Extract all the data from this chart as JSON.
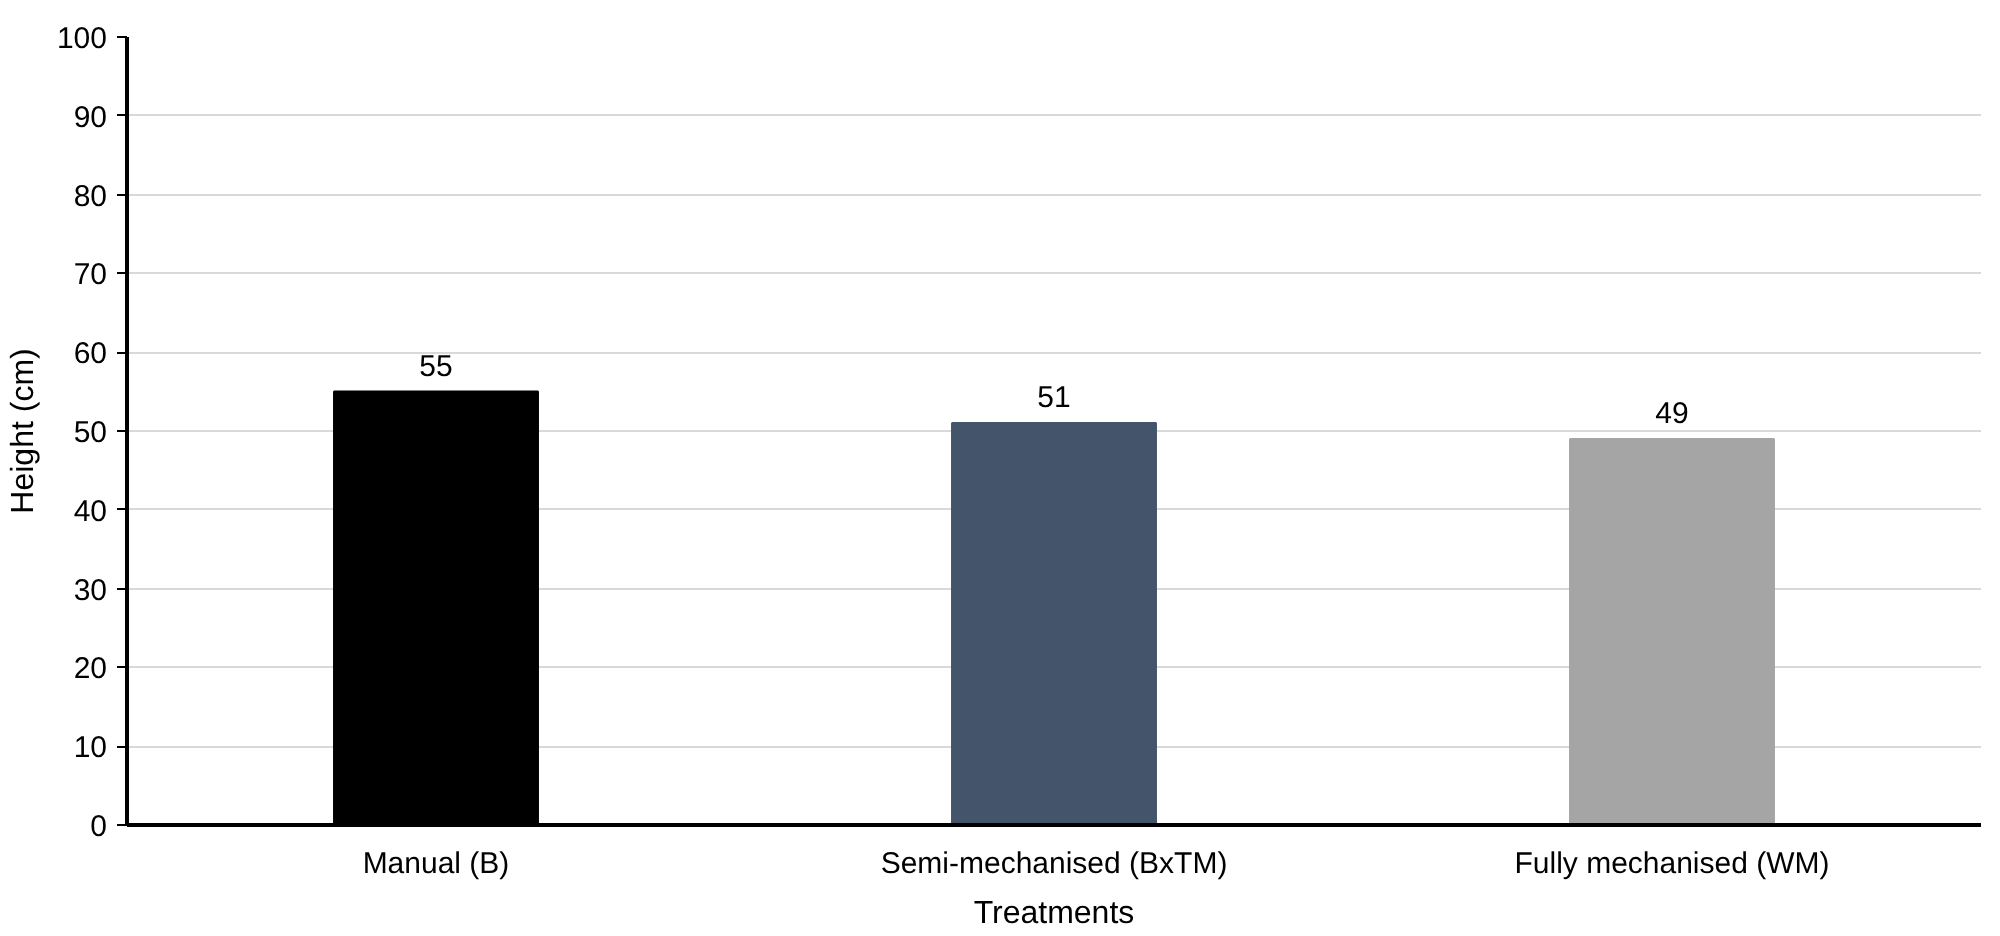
{
  "chart_data": {
    "type": "bar",
    "xlabel": "Treatments",
    "ylabel": "Height (cm)",
    "categories": [
      "Manual (B)",
      "Semi-mechanised (BxTM)",
      "Fully mechanised (WM)"
    ],
    "values": [
      55,
      51,
      49
    ],
    "colors": [
      "#000000",
      "#44546a",
      "#a5a5a5"
    ],
    "ylim": [
      0,
      100
    ],
    "yticks": [
      0,
      10,
      20,
      30,
      40,
      50,
      60,
      70,
      80,
      90,
      100
    ],
    "grid": "y",
    "data_labels": true
  }
}
